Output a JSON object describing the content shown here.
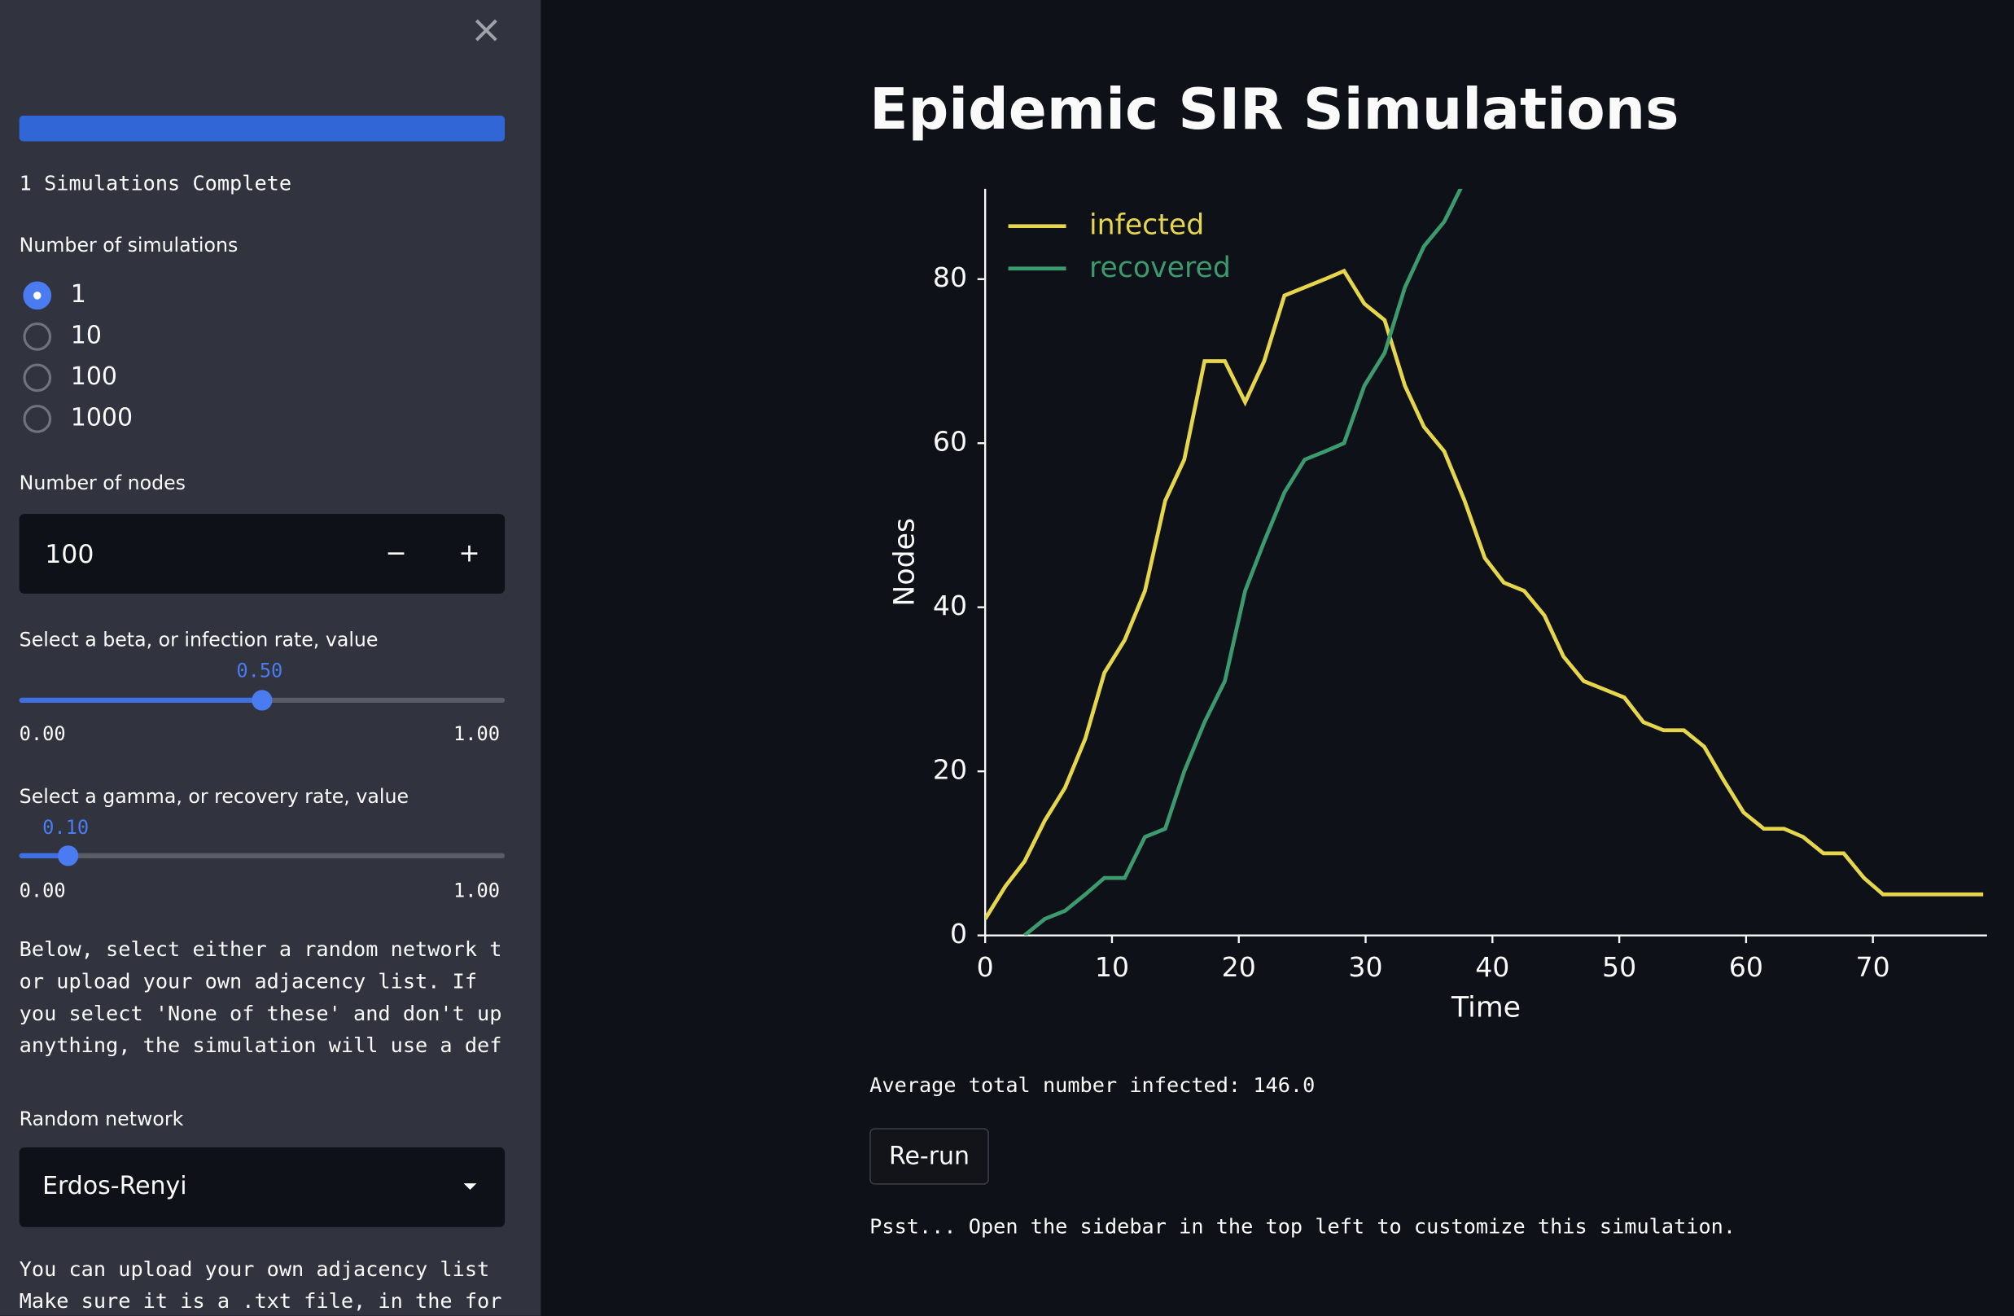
{
  "sidebar": {
    "close": "×",
    "progress_text": "1 Simulations Complete",
    "simulations_label": "Number of simulations",
    "simulations_options": [
      "1",
      "10",
      "100",
      "1000"
    ],
    "nodes_label": "Number of nodes",
    "nodes_value": "100",
    "minus": "−",
    "plus": "+",
    "beta_label": "Select a beta, or infection rate, value",
    "beta_value": "0.50",
    "beta_min": "0.00",
    "beta_max": "1.00",
    "gamma_label": "Select a gamma, or recovery rate, value",
    "gamma_value": "0.10",
    "gamma_min": "0.00",
    "gamma_max": "1.00",
    "description_lines": [
      "Below, select either a random network t",
      "or upload your own adjacency list. If",
      "you select 'None of these' and don't up",
      "anything, the simulation will use a def"
    ],
    "network_label": "Random network",
    "network_value": "Erdos-Renyi",
    "upload_lines": [
      "You can upload your own adjacency list",
      "Make sure it is a .txt file, in the for"
    ]
  },
  "main": {
    "title": "Epidemic SIR Simulations",
    "average_text": "Average total number infected: 146.0",
    "rerun": "Re-run",
    "hint": "Psst... Open the sidebar in the top left to customize this simulation."
  },
  "chart_data": {
    "type": "line",
    "xlabel": "Time",
    "ylabel": "Nodes",
    "legend": "upper left",
    "x": [
      0,
      1.6,
      3.1,
      4.7,
      6.3,
      7.9,
      9.4,
      11.0,
      12.6,
      14.2,
      15.7,
      17.3,
      18.9,
      20.5,
      22.0,
      23.6,
      25.2,
      26.8,
      28.3,
      29.9,
      31.5,
      33.1,
      34.6,
      36.2,
      37.8,
      39.4,
      40.9,
      42.5,
      44.1,
      45.6,
      47.2,
      48.8,
      50.4,
      51.9,
      53.5,
      55.1,
      56.7,
      58.2,
      59.8,
      61.4,
      63.0,
      64.5,
      66.1,
      67.7,
      69.3,
      70.8,
      72.4,
      74.0,
      75.6,
      77.1,
      78.7
    ],
    "series": [
      {
        "name": "infected",
        "color": "#e6d64c",
        "values": [
          2,
          6,
          9,
          14,
          18,
          24,
          32,
          36,
          42,
          53,
          58,
          70,
          70,
          65,
          70,
          78,
          79,
          80,
          81,
          77,
          75,
          67,
          62,
          59,
          53,
          46,
          43,
          42,
          39,
          34,
          31,
          30,
          29,
          26,
          25,
          25,
          23,
          19,
          15,
          13,
          13,
          12,
          10,
          10,
          7,
          5,
          5,
          5,
          5,
          5,
          5
        ]
      },
      {
        "name": "recovered",
        "color": "#3c9a6f",
        "values": [
          null,
          null,
          0,
          2,
          3,
          5,
          7,
          7,
          12,
          13,
          20,
          26,
          31,
          42,
          48,
          54,
          58,
          59,
          60,
          67,
          71,
          79,
          84,
          87,
          92,
          null,
          null,
          null,
          null,
          null,
          null,
          null,
          null,
          null,
          null,
          null,
          null,
          null,
          null,
          null,
          null,
          null,
          null,
          null,
          null,
          null,
          null,
          null,
          null,
          null,
          null
        ]
      }
    ],
    "xlim": [
      0,
      79
    ],
    "ylim": [
      0,
      91
    ],
    "xticks": [
      0,
      10,
      20,
      30,
      40,
      50,
      60,
      70
    ],
    "yticks": [
      0,
      20,
      40,
      60,
      80
    ]
  }
}
